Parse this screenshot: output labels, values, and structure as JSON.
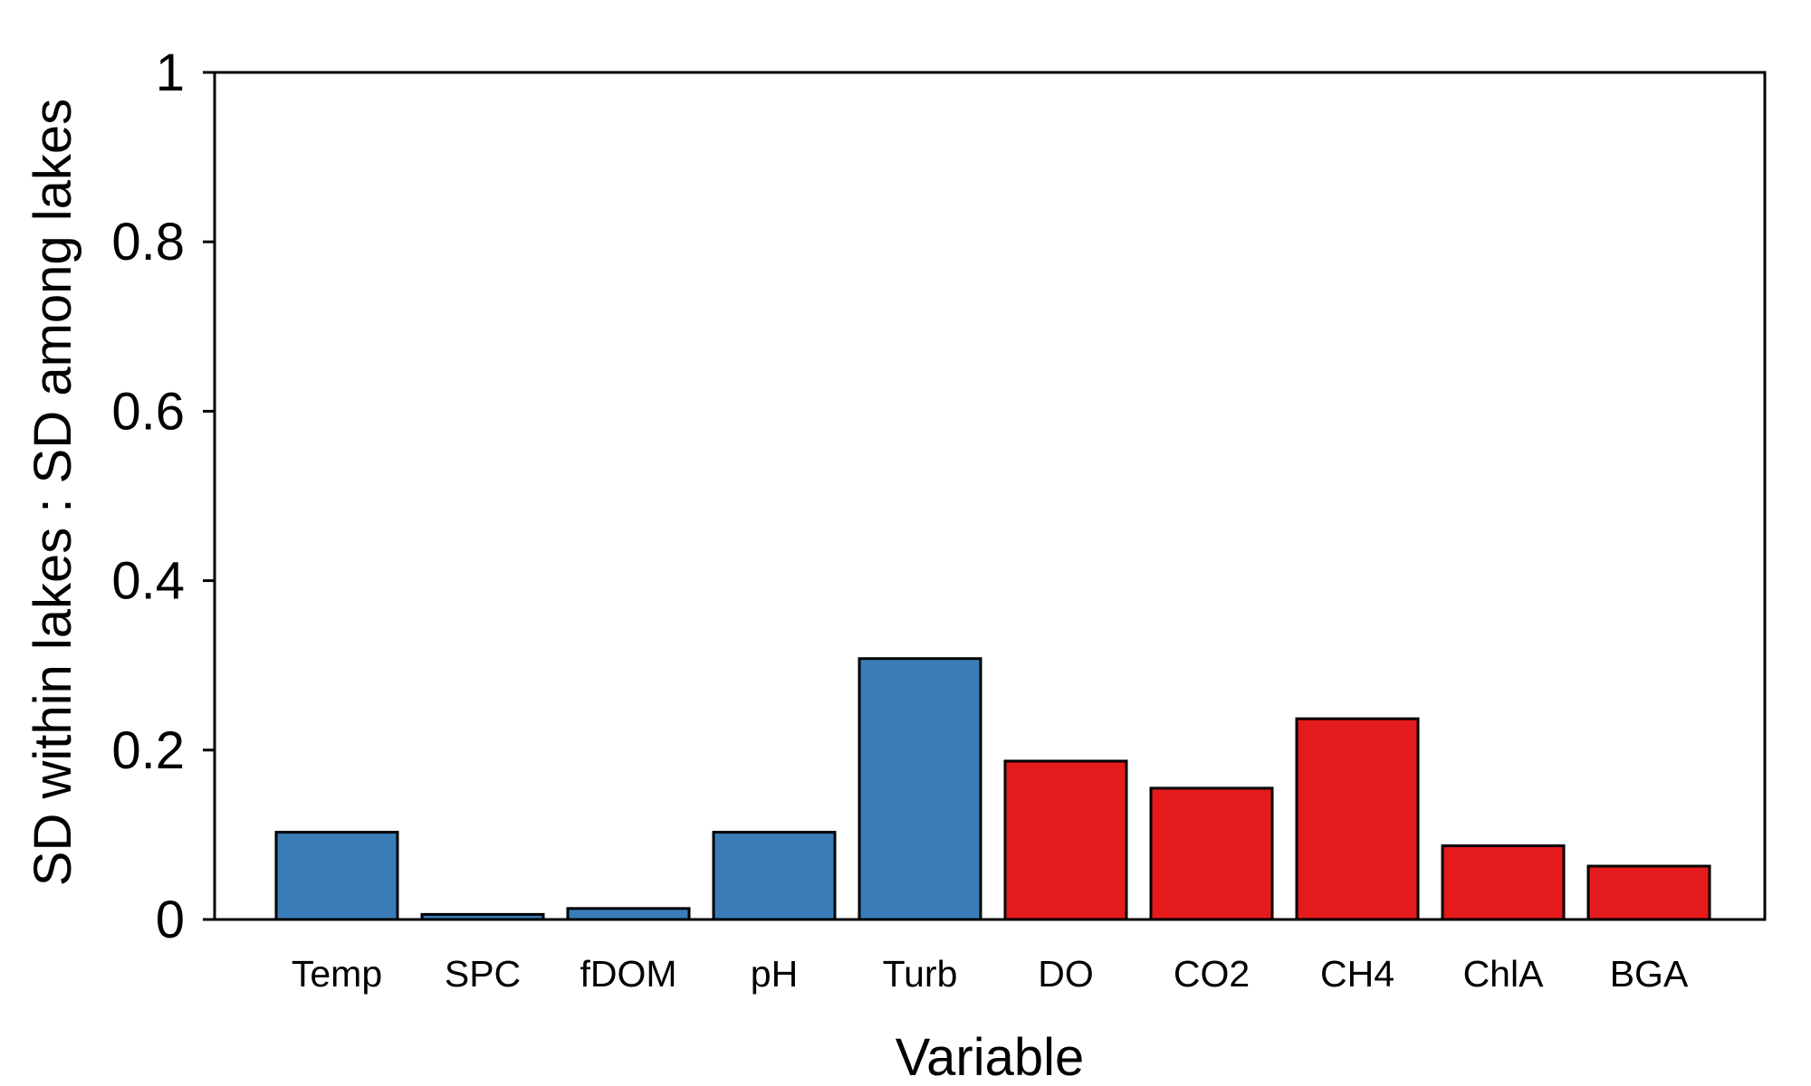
{
  "chart_data": {
    "type": "bar",
    "title": "",
    "xlabel": "Variable",
    "ylabel": "SD within lakes : SD among lakes",
    "ylim": [
      0,
      1
    ],
    "yticks": [
      0,
      0.2,
      0.4,
      0.6,
      0.8,
      1
    ],
    "ytick_labels": [
      "0",
      "0.2",
      "0.4",
      "0.6",
      "0.8",
      "1"
    ],
    "categories": [
      "Temp",
      "SPC",
      "fDOM",
      "pH",
      "Turb",
      "DO",
      "CO2",
      "CH4",
      "ChlA",
      "BGA"
    ],
    "values": [
      0.103,
      0.006,
      0.013,
      0.103,
      0.308,
      0.187,
      0.155,
      0.237,
      0.087,
      0.063
    ],
    "bar_colors": [
      "#3A7DB8",
      "#3A7DB8",
      "#3A7DB8",
      "#3A7DB8",
      "#3A7DB8",
      "#E41A1C",
      "#E41A1C",
      "#E41A1C",
      "#E41A1C",
      "#E41A1C"
    ],
    "grid": false,
    "legend": "none"
  }
}
